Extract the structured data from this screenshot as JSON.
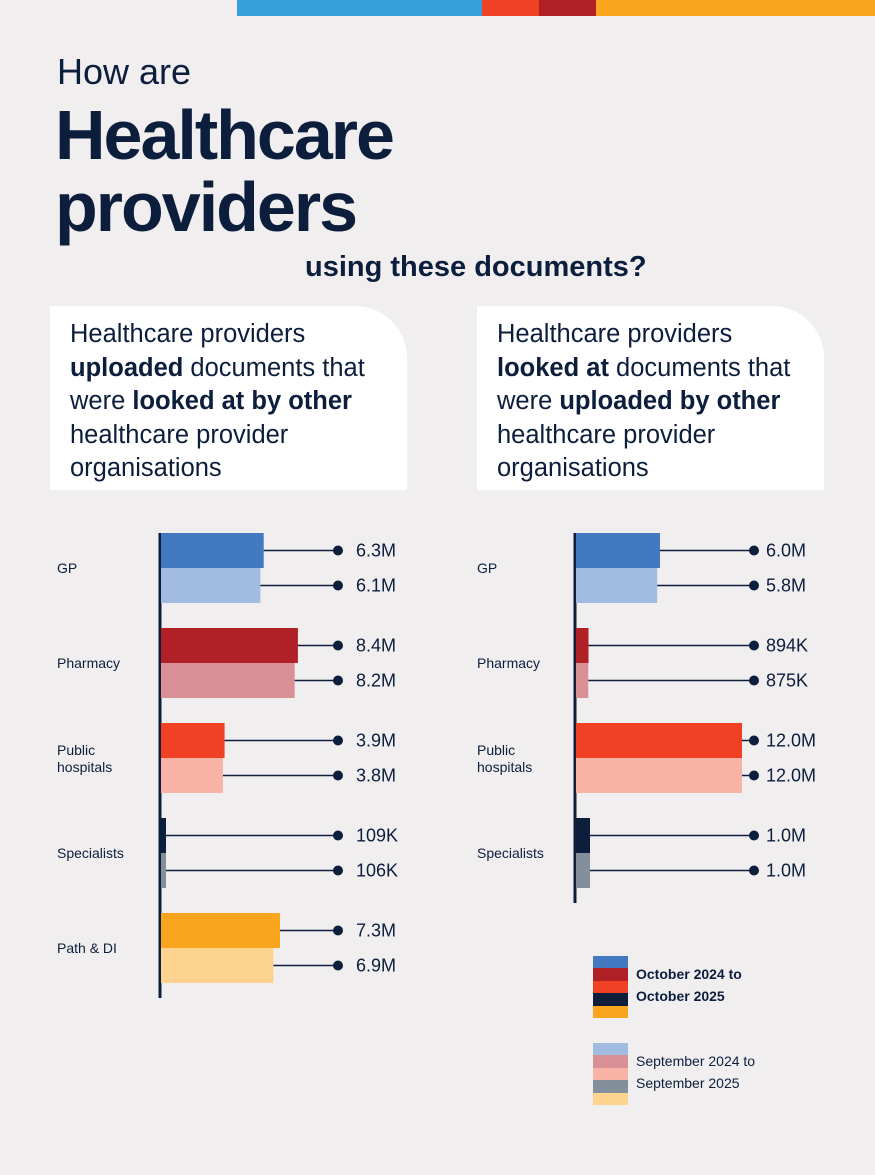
{
  "colors": {
    "top_bar": [
      "#34a1db",
      "#f04124",
      "#b11f27",
      "#f9a61e"
    ],
    "text": "#0c1e3c",
    "background": "#f0eeef"
  },
  "header": {
    "line1": "How are",
    "line2": "Healthcare providers",
    "line2a": "Healthcare",
    "line2b": "providers",
    "line3": "using these documents?"
  },
  "cards": [
    {
      "parts": [
        [
          "Healthcare providers ",
          false
        ],
        [
          "uploaded",
          true
        ],
        [
          " documents that were ",
          false
        ],
        [
          "looked at by other",
          true
        ],
        [
          " healthcare provider organisations",
          false
        ]
      ]
    },
    {
      "parts": [
        [
          "Healthcare providers ",
          false
        ],
        [
          "looked at",
          true
        ],
        [
          " documents that were ",
          false
        ],
        [
          "uploaded by other",
          true
        ],
        [
          " healthcare provider organisations",
          false
        ]
      ]
    }
  ],
  "legend": {
    "current": {
      "label_line1": "October 2024 to",
      "label_line2": "October 2025",
      "colors": [
        "#4279c1",
        "#b11f27",
        "#f04124",
        "#0c1e3c",
        "#f9a61e"
      ]
    },
    "previous": {
      "label_line1": "September 2024 to",
      "label_line2": "September 2025",
      "colors": [
        "#a2bbe0",
        "#d99094",
        "#f9b3a6",
        "#848f9c",
        "#fed38f"
      ]
    }
  },
  "chart_data": [
    {
      "type": "bar",
      "orientation": "horizontal",
      "title": "Healthcare providers uploaded documents that were looked at by other healthcare provider organisations",
      "categories": [
        "GP",
        "Pharmacy",
        "Public hospitals",
        "Specialists",
        "Path & DI"
      ],
      "series": [
        {
          "name": "October 2024 to October 2025",
          "values": [
            6300000,
            8400000,
            3900000,
            109000,
            7300000
          ],
          "labels": [
            "6.3M",
            "8.4M",
            "3.9M",
            "109K",
            "7.3M"
          ],
          "colors": [
            "#4279c1",
            "#b11f27",
            "#f04124",
            "#0c1e3c",
            "#f9a61e"
          ]
        },
        {
          "name": "September 2024 to September 2025",
          "values": [
            6100000,
            8200000,
            3800000,
            106000,
            6900000
          ],
          "labels": [
            "6.1M",
            "8.2M",
            "3.8M",
            "106K",
            "6.9M"
          ],
          "colors": [
            "#a2bbe0",
            "#d99094",
            "#f9b3a6",
            "#848f9c",
            "#fed38f"
          ]
        }
      ]
    },
    {
      "type": "bar",
      "orientation": "horizontal",
      "title": "Healthcare providers looked at documents that were uploaded by other healthcare provider organisations",
      "categories": [
        "GP",
        "Pharmacy",
        "Public hospitals",
        "Specialists"
      ],
      "series": [
        {
          "name": "October 2024 to October 2025",
          "values": [
            6000000,
            894000,
            12000000,
            1000000
          ],
          "labels": [
            "6.0M",
            "894K",
            "12.0M",
            "1.0M"
          ],
          "colors": [
            "#4279c1",
            "#b11f27",
            "#f04124",
            "#0c1e3c"
          ]
        },
        {
          "name": "September 2024 to September 2025",
          "values": [
            5800000,
            875000,
            12000000,
            1000000
          ],
          "labels": [
            "5.8M",
            "875K",
            "12.0M",
            "1.0M"
          ],
          "colors": [
            "#a2bbe0",
            "#d99094",
            "#f9b3a6",
            "#848f9c"
          ]
        }
      ]
    }
  ]
}
